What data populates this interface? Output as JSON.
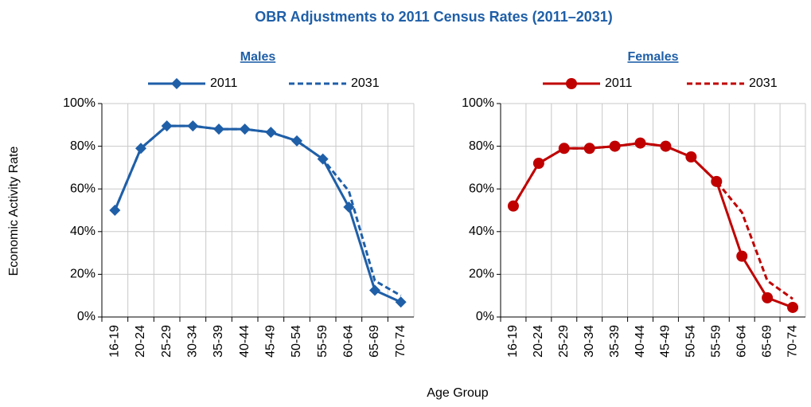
{
  "title": "OBR Adjustments to 2011 Census Rates (2011–2031)",
  "y_label": "Economic Activity Rate",
  "x_label": "Age Group",
  "chart_data": [
    {
      "type": "line",
      "title": "Males",
      "categories": [
        "16-19",
        "20-24",
        "25-29",
        "30-34",
        "35-39",
        "40-44",
        "45-49",
        "50-54",
        "55-59",
        "60-64",
        "65-69",
        "70-74"
      ],
      "series": [
        {
          "name": "2011",
          "color": "#1f5fa8",
          "marker": "diamond",
          "dashed": false,
          "values": [
            50,
            79,
            89.5,
            89.5,
            88,
            88,
            86.5,
            82.5,
            74,
            51.5,
            12.5,
            7
          ]
        },
        {
          "name": "2031",
          "color": "#1f5fa8",
          "marker": "none",
          "dashed": true,
          "values": [
            50,
            79,
            89.5,
            89.5,
            88,
            88,
            86.5,
            82.5,
            74,
            59,
            17,
            10
          ]
        }
      ],
      "ylim": [
        0,
        100
      ],
      "yticks": [
        {
          "value": 0,
          "label": "0%"
        },
        {
          "value": 20,
          "label": "20%"
        },
        {
          "value": 40,
          "label": "40%"
        },
        {
          "value": 60,
          "label": "60%"
        },
        {
          "value": 80,
          "label": "80%"
        },
        {
          "value": 100,
          "label": "100%"
        }
      ],
      "grid": true
    },
    {
      "type": "line",
      "title": "Females",
      "categories": [
        "16-19",
        "20-24",
        "25-29",
        "30-34",
        "35-39",
        "40-44",
        "45-49",
        "50-54",
        "55-59",
        "60-64",
        "65-69",
        "70-74"
      ],
      "series": [
        {
          "name": "2011",
          "color": "#c00000",
          "marker": "circle",
          "dashed": false,
          "values": [
            52,
            72,
            79,
            79,
            80,
            81.5,
            80,
            75,
            63.5,
            28.5,
            9,
            4.5
          ]
        },
        {
          "name": "2031",
          "color": "#c00000",
          "marker": "none",
          "dashed": true,
          "values": [
            52,
            72,
            79,
            79,
            80,
            81.5,
            80,
            75,
            63.5,
            49,
            17,
            8.5
          ]
        }
      ],
      "ylim": [
        0,
        100
      ],
      "yticks": [
        {
          "value": 0,
          "label": "0%"
        },
        {
          "value": 20,
          "label": "20%"
        },
        {
          "value": 40,
          "label": "40%"
        },
        {
          "value": 60,
          "label": "60%"
        },
        {
          "value": 80,
          "label": "80%"
        },
        {
          "value": 100,
          "label": "100%"
        }
      ],
      "grid": true
    }
  ]
}
